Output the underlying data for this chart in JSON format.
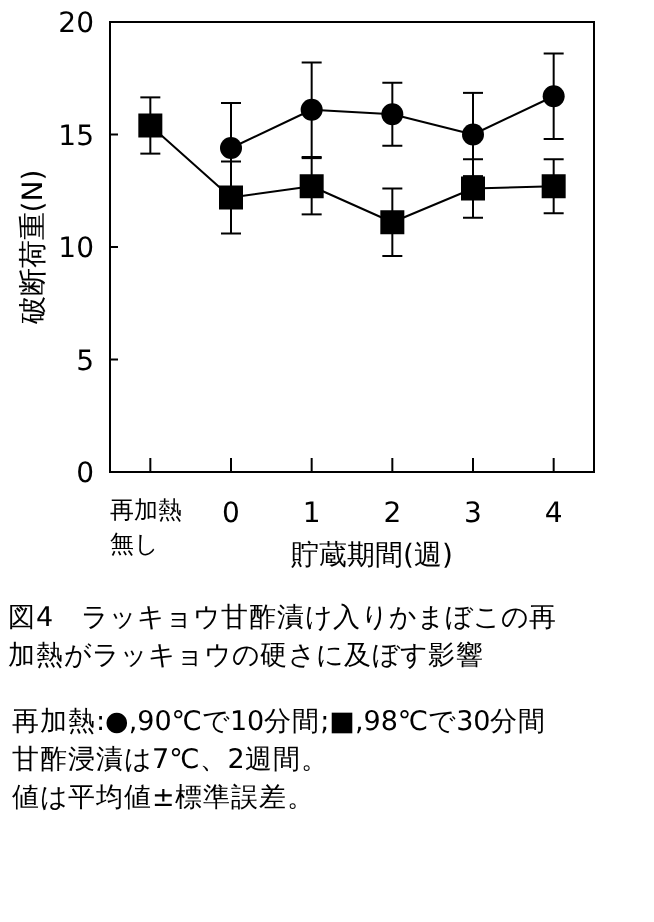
{
  "chart_data": {
    "type": "line",
    "categories": [
      "再加熱無し",
      "0",
      "1",
      "2",
      "3",
      "4"
    ],
    "series": [
      {
        "color": "#000000",
        "marker": "circle",
        "values": [
          null,
          14.4,
          16.1,
          15.9,
          15.0,
          16.7
        ],
        "errors": [
          null,
          2.0,
          2.1,
          1.4,
          1.85,
          1.9
        ]
      },
      {
        "color": "#000000",
        "marker": "square",
        "values": [
          15.4,
          12.2,
          12.7,
          11.1,
          12.6,
          12.7
        ],
        "errors": [
          1.25,
          1.6,
          1.25,
          1.5,
          1.3,
          1.2
        ]
      }
    ],
    "xlabel": "貯蔵期間(週)",
    "ylabel": "破断荷重(N)",
    "ylim": [
      0,
      20
    ],
    "yticks": [
      0,
      5,
      10,
      15,
      20
    ],
    "grid": false,
    "title": "図4　ラッキョウ甘酢漬け入りかまぼこの再加熱がラッキョウの硬さに及ぼす影響",
    "annotations": [
      "再加熱:●,90℃で10分間;■,98℃で30分間",
      "甘酢浸漬は7℃、2週間。",
      "値は平均値±標準誤差。"
    ]
  }
}
